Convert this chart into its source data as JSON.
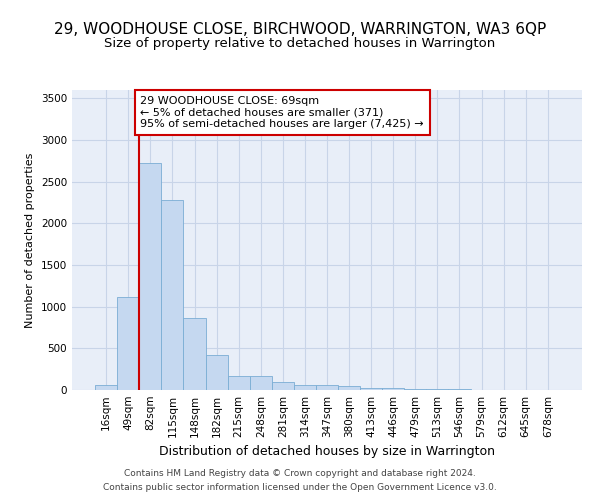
{
  "title_line1": "29, WOODHOUSE CLOSE, BIRCHWOOD, WARRINGTON, WA3 6QP",
  "title_line2": "Size of property relative to detached houses in Warrington",
  "xlabel": "Distribution of detached houses by size in Warrington",
  "ylabel": "Number of detached properties",
  "footer_line1": "Contains HM Land Registry data © Crown copyright and database right 2024.",
  "footer_line2": "Contains public sector information licensed under the Open Government Licence v3.0.",
  "annotation_line1": "29 WOODHOUSE CLOSE: 69sqm",
  "annotation_line2": "← 5% of detached houses are smaller (371)",
  "annotation_line3": "95% of semi-detached houses are larger (7,425) →",
  "bar_labels": [
    "16sqm",
    "49sqm",
    "82sqm",
    "115sqm",
    "148sqm",
    "182sqm",
    "215sqm",
    "248sqm",
    "281sqm",
    "314sqm",
    "347sqm",
    "380sqm",
    "413sqm",
    "446sqm",
    "479sqm",
    "513sqm",
    "546sqm",
    "579sqm",
    "612sqm",
    "645sqm",
    "678sqm"
  ],
  "bar_values": [
    55,
    1120,
    2720,
    2280,
    870,
    425,
    170,
    165,
    95,
    65,
    55,
    45,
    28,
    22,
    15,
    10,
    8,
    5,
    3,
    2,
    2
  ],
  "bar_color": "#c5d8f0",
  "bar_edge_color": "#7aadd4",
  "bar_width": 1.0,
  "vline_x_index": 1.5,
  "vline_color": "#cc0000",
  "ylim": [
    0,
    3600
  ],
  "yticks": [
    0,
    500,
    1000,
    1500,
    2000,
    2500,
    3000,
    3500
  ],
  "grid_color": "#c8d4e8",
  "bg_color": "#e8eef8",
  "annotation_box_edgecolor": "#cc0000",
  "annotation_box_facecolor": "white",
  "title1_fontsize": 11,
  "title2_fontsize": 9.5,
  "ylabel_fontsize": 8,
  "xlabel_fontsize": 9,
  "tick_fontsize": 7.5,
  "annotation_fontsize": 8,
  "footer_fontsize": 6.5
}
